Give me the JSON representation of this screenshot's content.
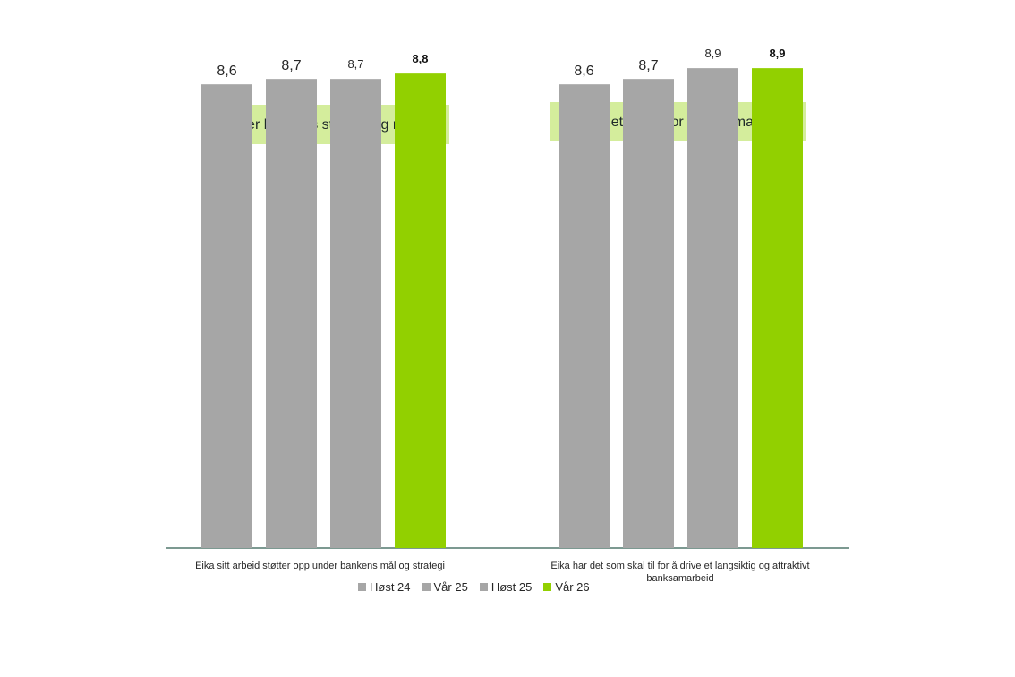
{
  "chart_data": {
    "type": "bar",
    "groups": [
      {
        "title": "Støtter bankens strategi og retning",
        "category": "Eika sitt arbeid støtter opp under bankens mål og strategi",
        "values": [
          8.6,
          8.7,
          8.7,
          8.8
        ],
        "labels": [
          "8,6",
          "8,7",
          "8,7",
          "8,8"
        ]
      },
      {
        "title": "Forutsetninger for  banksamarbeid",
        "category": "Eika har det som skal til for å drive et langsiktig og attraktivt banksamarbeid",
        "values": [
          8.6,
          8.7,
          8.9,
          8.9
        ],
        "labels": [
          "8,6",
          "8,7",
          "8,9",
          "8,9"
        ]
      }
    ],
    "series": [
      {
        "name": "Høst 24",
        "color": "#a6a6a6"
      },
      {
        "name": "Vår 25",
        "color": "#a6a6a6"
      },
      {
        "name": "Høst 25",
        "color": "#a6a6a6"
      },
      {
        "name": "Vår 26",
        "color": "#92d000"
      }
    ],
    "ylim": [
      0,
      9.5
    ],
    "grid": false,
    "legend_position": "bottom",
    "axis_color": "#2e5c4f"
  }
}
